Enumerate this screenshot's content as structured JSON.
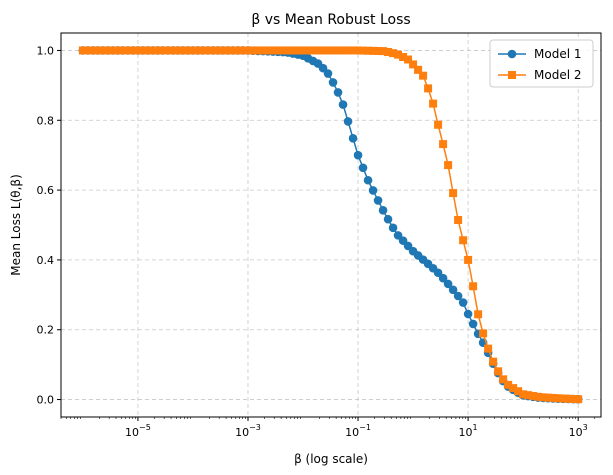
{
  "chart_data": {
    "type": "line",
    "title": "β vs Mean Robust Loss",
    "xlabel": "β (log scale)",
    "ylabel": "Mean Loss L(θ,β)",
    "xscale": "log",
    "xlim": [
      4e-07,
      2600
    ],
    "ylim": [
      -0.05,
      1.05
    ],
    "xticks": [
      {
        "value": 1e-05,
        "base": "10",
        "exp": "−5"
      },
      {
        "value": 0.001,
        "base": "10",
        "exp": "−3"
      },
      {
        "value": 0.1,
        "base": "10",
        "exp": "−1"
      },
      {
        "value": 10,
        "base": "10",
        "exp": "1"
      },
      {
        "value": 1000,
        "base": "10",
        "exp": "3"
      }
    ],
    "yticks": [
      "0.0",
      "0.2",
      "0.4",
      "0.6",
      "0.8",
      "1.0"
    ],
    "grid": true,
    "legend_position": "top-right",
    "x_range": [
      1e-06,
      1000
    ],
    "n_points": 100,
    "series": [
      {
        "name": "Model 1",
        "color": "#1f77b4",
        "marker": "circle",
        "curve": [
          [
            1e-06,
            1.0
          ],
          [
            0.001,
            1.0
          ],
          [
            0.005,
            0.995
          ],
          [
            0.01,
            0.985
          ],
          [
            0.02,
            0.96
          ],
          [
            0.03,
            0.93
          ],
          [
            0.05,
            0.86
          ],
          [
            0.1,
            0.7
          ],
          [
            0.15,
            0.63
          ],
          [
            0.2,
            0.59
          ],
          [
            0.3,
            0.535
          ],
          [
            0.5,
            0.475
          ],
          [
            1,
            0.425
          ],
          [
            2,
            0.385
          ],
          [
            3,
            0.36
          ],
          [
            5,
            0.32
          ],
          [
            8,
            0.28
          ],
          [
            10,
            0.245
          ],
          [
            15,
            0.19
          ],
          [
            20,
            0.155
          ],
          [
            30,
            0.095
          ],
          [
            40,
            0.06
          ],
          [
            50,
            0.04
          ],
          [
            70,
            0.025
          ],
          [
            100,
            0.012
          ],
          [
            200,
            0.005
          ],
          [
            500,
            0.002
          ],
          [
            1000,
            0.001
          ]
        ]
      },
      {
        "name": "Model 2",
        "color": "#ff7f0e",
        "marker": "square",
        "curve": [
          [
            1e-06,
            1.0
          ],
          [
            0.1,
            1.0
          ],
          [
            0.3,
            0.998
          ],
          [
            0.5,
            0.99
          ],
          [
            0.8,
            0.975
          ],
          [
            1.0,
            0.96
          ],
          [
            1.5,
            0.93
          ],
          [
            2.0,
            0.88
          ],
          [
            2.5,
            0.83
          ],
          [
            3.0,
            0.77
          ],
          [
            4.0,
            0.7
          ],
          [
            5.0,
            0.62
          ],
          [
            6.0,
            0.54
          ],
          [
            8.0,
            0.46
          ],
          [
            10,
            0.4
          ],
          [
            12,
            0.335
          ],
          [
            14,
            0.275
          ],
          [
            16,
            0.225
          ],
          [
            20,
            0.175
          ],
          [
            25,
            0.13
          ],
          [
            30,
            0.1
          ],
          [
            40,
            0.065
          ],
          [
            50,
            0.045
          ],
          [
            70,
            0.03
          ],
          [
            100,
            0.015
          ],
          [
            200,
            0.007
          ],
          [
            500,
            0.003
          ],
          [
            1000,
            0.001
          ]
        ]
      }
    ]
  }
}
